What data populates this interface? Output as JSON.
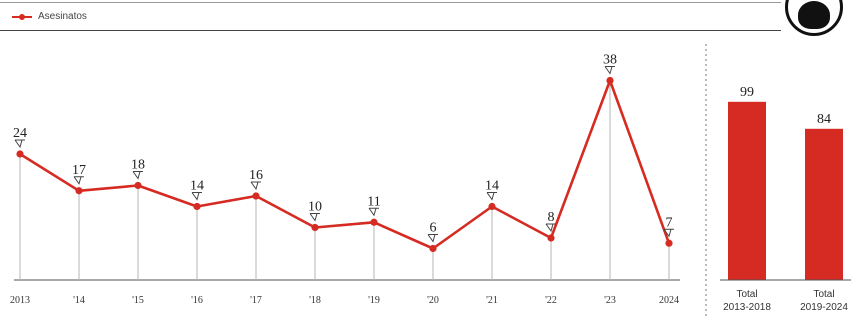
{
  "legend": {
    "label": "Asesinatos",
    "color": "#d52b22"
  },
  "chart_data": [
    {
      "type": "line",
      "x": [
        "2013",
        "'14",
        "'15",
        "'16",
        "'17",
        "'18",
        "'19",
        "'20",
        "'21",
        "'22",
        "'23",
        "2024"
      ],
      "series": [
        {
          "name": "Asesinatos",
          "values": [
            24,
            17,
            18,
            14,
            16,
            10,
            11,
            6,
            14,
            8,
            38,
            7
          ],
          "color": "#d52b22"
        }
      ],
      "ylim": [
        0,
        40
      ],
      "grid": false
    },
    {
      "type": "bar",
      "categories": [
        "Total 2013-2018",
        "Total 2019-2024"
      ],
      "category_lines": [
        [
          "Total",
          "2013-2018"
        ],
        [
          "Total",
          "2019-2024"
        ]
      ],
      "values": [
        99,
        84
      ],
      "color": "#d52b22",
      "ylim": [
        0,
        100
      ]
    }
  ],
  "logo": {
    "icon": "skull-icon"
  }
}
